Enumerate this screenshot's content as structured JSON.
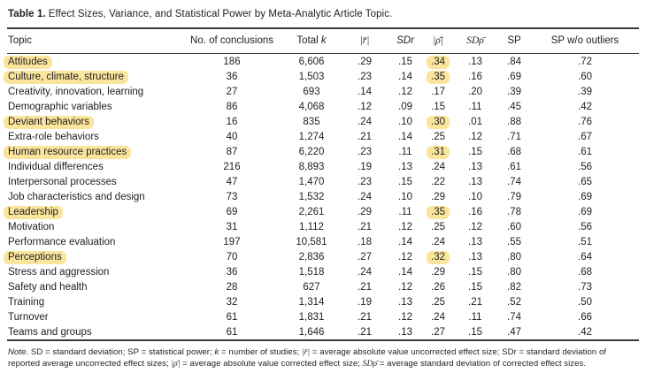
{
  "title": {
    "bold": "Table 1.",
    "text": "Effect Sizes, Variance, and Statistical Power by Meta-Analytic Article Topic."
  },
  "header": {
    "topic": "Topic",
    "no_of_conclusions": "No. of conclusions",
    "total": "Total",
    "k": "k",
    "abs_r": "|r̄|",
    "sdr": "SDr",
    "abs_rho": "|ρ̄|",
    "sd_rho": "SDρ̄",
    "sp": "SP",
    "sp_wo_outliers": "SP w/o outliers"
  },
  "highlight_color": "#fae59d",
  "rows": [
    {
      "topic": "Attitudes",
      "hl_topic": true,
      "conclusions": "186",
      "total_k": "6,606",
      "r": ".29",
      "sdr": ".15",
      "rho": ".34",
      "hl_rho": true,
      "sd_rho": ".13",
      "sp": ".84",
      "sp_wo": ".72"
    },
    {
      "topic": "Culture, climate, structure",
      "hl_topic": true,
      "conclusions": "36",
      "total_k": "1,503",
      "r": ".23",
      "sdr": ".14",
      "rho": ".35",
      "hl_rho": true,
      "sd_rho": ".16",
      "sp": ".69",
      "sp_wo": ".60"
    },
    {
      "topic": "Creativity, innovation, learning",
      "hl_topic": false,
      "conclusions": "27",
      "total_k": "693",
      "r": ".14",
      "sdr": ".12",
      "rho": ".17",
      "hl_rho": false,
      "sd_rho": ".20",
      "sp": ".39",
      "sp_wo": ".39"
    },
    {
      "topic": "Demographic variables",
      "hl_topic": false,
      "conclusions": "86",
      "total_k": "4,068",
      "r": ".12",
      "sdr": ".09",
      "rho": ".15",
      "hl_rho": false,
      "sd_rho": ".11",
      "sp": ".45",
      "sp_wo": ".42"
    },
    {
      "topic": "Deviant behaviors",
      "hl_topic": true,
      "conclusions": "16",
      "total_k": "835",
      "r": ".24",
      "sdr": ".10",
      "rho": ".30",
      "hl_rho": true,
      "sd_rho": ".01",
      "sp": ".88",
      "sp_wo": ".76"
    },
    {
      "topic": "Extra-role behaviors",
      "hl_topic": false,
      "conclusions": "40",
      "total_k": "1,274",
      "r": ".21",
      "sdr": ".14",
      "rho": ".25",
      "hl_rho": false,
      "sd_rho": ".12",
      "sp": ".71",
      "sp_wo": ".67"
    },
    {
      "topic": "Human resource practices",
      "hl_topic": true,
      "conclusions": "87",
      "total_k": "6,220",
      "r": ".23",
      "sdr": ".11",
      "rho": ".31",
      "hl_rho": true,
      "sd_rho": ".15",
      "sp": ".68",
      "sp_wo": ".61"
    },
    {
      "topic": "Individual differences",
      "hl_topic": false,
      "conclusions": "216",
      "total_k": "8,893",
      "r": ".19",
      "sdr": ".13",
      "rho": ".24",
      "hl_rho": false,
      "sd_rho": ".13",
      "sp": ".61",
      "sp_wo": ".56"
    },
    {
      "topic": "Interpersonal processes",
      "hl_topic": false,
      "conclusions": "47",
      "total_k": "1,470",
      "r": ".23",
      "sdr": ".15",
      "rho": ".22",
      "hl_rho": false,
      "sd_rho": ".13",
      "sp": ".74",
      "sp_wo": ".65"
    },
    {
      "topic": "Job characteristics and design",
      "hl_topic": false,
      "conclusions": "73",
      "total_k": "1,532",
      "r": ".24",
      "sdr": ".10",
      "rho": ".29",
      "hl_rho": false,
      "sd_rho": ".10",
      "sp": ".79",
      "sp_wo": ".69"
    },
    {
      "topic": "Leadership",
      "hl_topic": true,
      "conclusions": "69",
      "total_k": "2,261",
      "r": ".29",
      "sdr": ".11",
      "rho": ".35",
      "hl_rho": true,
      "sd_rho": ".16",
      "sp": ".78",
      "sp_wo": ".69"
    },
    {
      "topic": "Motivation",
      "hl_topic": false,
      "conclusions": "31",
      "total_k": "1,112",
      "r": ".21",
      "sdr": ".12",
      "rho": ".25",
      "hl_rho": false,
      "sd_rho": ".12",
      "sp": ".60",
      "sp_wo": ".56"
    },
    {
      "topic": "Performance evaluation",
      "hl_topic": false,
      "conclusions": "197",
      "total_k": "10,581",
      "r": ".18",
      "sdr": ".14",
      "rho": ".24",
      "hl_rho": false,
      "sd_rho": ".13",
      "sp": ".55",
      "sp_wo": ".51"
    },
    {
      "topic": "Perceptions",
      "hl_topic": true,
      "conclusions": "70",
      "total_k": "2,836",
      "r": ".27",
      "sdr": ".12",
      "rho": ".32",
      "hl_rho": true,
      "sd_rho": ".13",
      "sp": ".80",
      "sp_wo": ".64"
    },
    {
      "topic": "Stress and aggression",
      "hl_topic": false,
      "conclusions": "36",
      "total_k": "1,518",
      "r": ".24",
      "sdr": ".14",
      "rho": ".29",
      "hl_rho": false,
      "sd_rho": ".15",
      "sp": ".80",
      "sp_wo": ".68"
    },
    {
      "topic": "Safety and health",
      "hl_topic": false,
      "conclusions": "28",
      "total_k": "627",
      "r": ".21",
      "sdr": ".12",
      "rho": ".26",
      "hl_rho": false,
      "sd_rho": ".15",
      "sp": ".82",
      "sp_wo": ".73"
    },
    {
      "topic": "Training",
      "hl_topic": false,
      "conclusions": "32",
      "total_k": "1,314",
      "r": ".19",
      "sdr": ".13",
      "rho": ".25",
      "hl_rho": false,
      "sd_rho": ".21",
      "sp": ".52",
      "sp_wo": ".50"
    },
    {
      "topic": "Turnover",
      "hl_topic": false,
      "conclusions": "61",
      "total_k": "1,831",
      "r": ".21",
      "sdr": ".12",
      "rho": ".24",
      "hl_rho": false,
      "sd_rho": ".11",
      "sp": ".74",
      "sp_wo": ".66"
    },
    {
      "topic": "Teams and groups",
      "hl_topic": false,
      "conclusions": "61",
      "total_k": "1,646",
      "r": ".21",
      "sdr": ".13",
      "rho": ".27",
      "hl_rho": false,
      "sd_rho": ".15",
      "sp": ".47",
      "sp_wo": ".42"
    }
  ],
  "note": {
    "s1": "Note.",
    "s2": " SD = standard deviation; SP = statistical power; ",
    "s3": "k",
    "s4": " = number of studies; ",
    "s5": "|r̄|",
    "s6": " = average absolute value uncorrected effect size; SDr = standard deviation of reported average uncorrected effect sizes; ",
    "s7": "|ρ̄|",
    "s8": " = average absolute value corrected effect size; ",
    "s9": "SDρ̄",
    "s10": " = average standard deviation of corrected effect sizes."
  }
}
